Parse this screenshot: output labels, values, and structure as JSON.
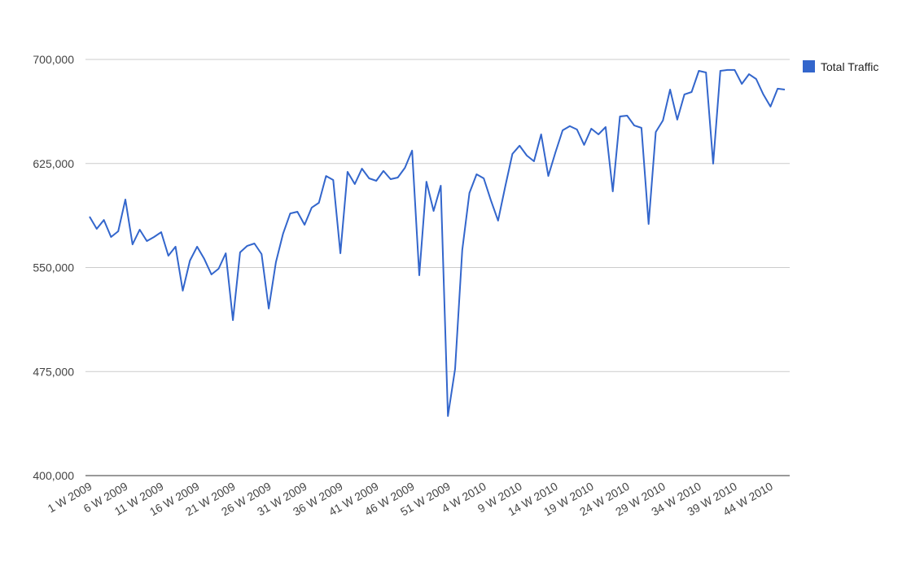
{
  "chart_data": {
    "type": "line",
    "categories": [
      "1 W 2009",
      null,
      null,
      null,
      null,
      "6 W 2009",
      null,
      null,
      null,
      null,
      "11 W 2009",
      null,
      null,
      null,
      null,
      "16 W 2009",
      null,
      null,
      null,
      null,
      "21 W 2009",
      null,
      null,
      null,
      null,
      "26 W 2009",
      null,
      null,
      null,
      null,
      "31 W 2009",
      null,
      null,
      null,
      null,
      "36 W 2009",
      null,
      null,
      null,
      null,
      "41 W 2009",
      null,
      null,
      null,
      null,
      "46 W 2009",
      null,
      null,
      null,
      null,
      "51 W 2009",
      null,
      null,
      null,
      null,
      "4 W 2010",
      null,
      null,
      null,
      null,
      "9 W 2010",
      null,
      null,
      null,
      null,
      "14 W 2010",
      null,
      null,
      null,
      null,
      "19 W 2010",
      null,
      null,
      null,
      null,
      "24 W 2010",
      null,
      null,
      null,
      null,
      "29 W 2010",
      null,
      null,
      null,
      null,
      "34 W 2010",
      null,
      null,
      null,
      null,
      "39 W 2010",
      null,
      null,
      null,
      null,
      "44 W 2010",
      null,
      null
    ],
    "series": [
      {
        "name": "Total Traffic",
        "color": "#3366cc",
        "values": [
          586700,
          577900,
          584300,
          572000,
          576100,
          599000,
          566700,
          577300,
          569100,
          572000,
          575500,
          558500,
          565000,
          533300,
          555000,
          565000,
          556200,
          545000,
          549100,
          560300,
          512100,
          560900,
          565600,
          567300,
          559700,
          520400,
          553800,
          574400,
          589000,
          590200,
          580800,
          593200,
          596700,
          616000,
          613100,
          560300,
          619000,
          610200,
          621300,
          614300,
          612500,
          619600,
          613700,
          614900,
          621900,
          634300,
          544400,
          611900,
          590800,
          609000,
          442900,
          476900,
          562600,
          603700,
          617200,
          614300,
          598400,
          583800,
          608400,
          631900,
          637800,
          630700,
          626600,
          646000,
          616000,
          633100,
          648900,
          651900,
          649500,
          638400,
          650100,
          646000,
          651300,
          604900,
          658900,
          659500,
          652400,
          650700,
          581400,
          647700,
          656000,
          678300,
          656600,
          674800,
          676500,
          691800,
          690600,
          624900,
          691800,
          692400,
          692400,
          682400,
          689400,
          685900,
          674800,
          666000,
          678900,
          678300
        ]
      }
    ],
    "ylim": [
      400000,
      700000
    ],
    "yticks": [
      {
        "value": 400000,
        "label": "400,000"
      },
      {
        "value": 475000,
        "label": "475,000"
      },
      {
        "value": 550000,
        "label": "550,000"
      },
      {
        "value": 625000,
        "label": "625,000"
      },
      {
        "value": 700000,
        "label": "700,000"
      }
    ],
    "grid": true,
    "legend": "right"
  }
}
